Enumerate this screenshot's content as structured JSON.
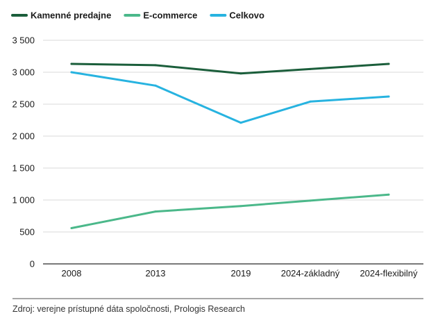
{
  "chart_data": {
    "type": "line",
    "categories": [
      "2008",
      "2013",
      "2019",
      "2024-základný",
      "2024-flexibilný"
    ],
    "series": [
      {
        "name": "Kamenné predajne",
        "color": "#1b5e3b",
        "values": [
          3130,
          3110,
          2980,
          3050,
          3130
        ]
      },
      {
        "name": "E-commerce",
        "color": "#4bb88a",
        "values": [
          560,
          820,
          905,
          990,
          1085
        ]
      },
      {
        "name": "Celkovo",
        "color": "#27b3e0",
        "values": [
          3000,
          2790,
          2210,
          2540,
          2620
        ]
      }
    ],
    "y_ticks": [
      "0",
      "500",
      "1 000",
      "1 500",
      "2 000",
      "2 500",
      "3 000",
      "3 500"
    ],
    "y_tick_values": [
      0,
      500,
      1000,
      1500,
      2000,
      2500,
      3000,
      3500
    ],
    "ylim": [
      0,
      3500
    ],
    "grid": true,
    "legend_position": "top-left"
  },
  "source": "Zdroj: verejne prístupné dáta spoločnosti, Prologis Research"
}
